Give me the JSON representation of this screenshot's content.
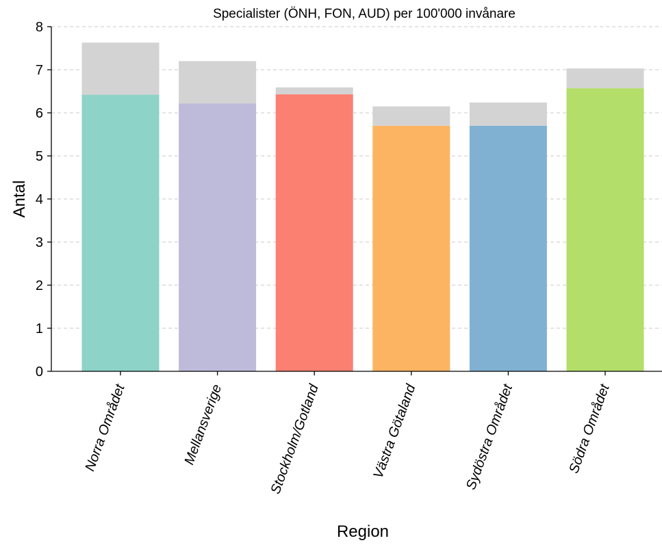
{
  "chart_data": {
    "type": "bar",
    "title": "Specialister (ÖNH, FON, AUD) per 100'000 invånare",
    "xlabel": "Region",
    "ylabel": "Antal",
    "ylim": [
      0,
      8
    ],
    "yticks": [
      "0",
      "1",
      "2",
      "3",
      "4",
      "5",
      "6",
      "7",
      "8"
    ],
    "grid": "horizontal-dashed",
    "stacked": true,
    "categories": [
      "Norra Området",
      "Mellansverige",
      "Stockholm/Gotland",
      "Västra Götaland",
      "Sydöstra Området",
      "Södra Området"
    ],
    "series": [
      {
        "values": [
          6.42,
          6.22,
          6.43,
          5.7,
          5.7,
          6.57
        ],
        "colors": [
          "#8dd3c7",
          "#bebada",
          "#fb8072",
          "#fdb462",
          "#80b1d3",
          "#b3de69"
        ]
      },
      {
        "values": [
          1.21,
          0.98,
          0.16,
          0.45,
          0.54,
          0.46
        ],
        "color": "#d3d3d3"
      }
    ],
    "totals": [
      7.63,
      7.2,
      6.59,
      6.15,
      6.24,
      7.03
    ]
  }
}
